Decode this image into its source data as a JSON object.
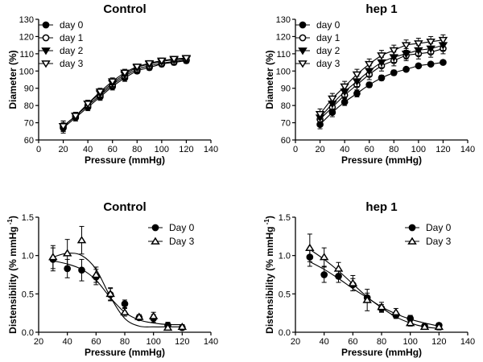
{
  "chart_data": [
    {
      "type": "line",
      "title": "Control",
      "xlabel": "Pressure (mmHg)",
      "ylabel": "Diameter (%)",
      "xlim": [
        0,
        140
      ],
      "ylim": [
        60,
        130
      ],
      "xticks": [
        0,
        20,
        40,
        60,
        80,
        100,
        120,
        140
      ],
      "yticks": [
        60,
        70,
        80,
        90,
        100,
        110,
        120,
        130
      ],
      "x": [
        20,
        30,
        40,
        50,
        60,
        70,
        80,
        90,
        100,
        110,
        120
      ],
      "legend_position": "top-left",
      "series": [
        {
          "name": "day 0",
          "marker": "circle-filled",
          "values": [
            67,
            73,
            79,
            85,
            91,
            96,
            100,
            102,
            104,
            105,
            106
          ],
          "errors": [
            3,
            2,
            2,
            2,
            2,
            2,
            1.5,
            1.5,
            1.5,
            1.5,
            1.5
          ]
        },
        {
          "name": "day 1",
          "marker": "circle-open",
          "values": [
            68,
            74,
            80,
            86,
            92,
            97,
            101,
            103,
            104.5,
            105.5,
            106.5
          ],
          "errors": [
            3,
            2,
            2,
            2,
            2,
            2,
            1.5,
            1.5,
            1.5,
            1.5,
            1.5
          ]
        },
        {
          "name": "day 2",
          "marker": "triangle-down-filled",
          "values": [
            68,
            74,
            81,
            87,
            93,
            98,
            102,
            104,
            105.5,
            106.5,
            107
          ],
          "errors": [
            3,
            2,
            2,
            2,
            2,
            2,
            1.5,
            1.5,
            1.5,
            1.5,
            1.5
          ]
        },
        {
          "name": "day 3",
          "marker": "triangle-down-open",
          "values": [
            68,
            74,
            81,
            88,
            94,
            99,
            102.5,
            104.5,
            106,
            107,
            107.5
          ],
          "errors": [
            3,
            2,
            2,
            2,
            2,
            2,
            1.5,
            1.5,
            1.5,
            1.5,
            1.5
          ]
        }
      ]
    },
    {
      "type": "line",
      "title": "hep 1",
      "xlabel": "Pressure (mmHg)",
      "ylabel": "Diameter (%)",
      "xlim": [
        0,
        140
      ],
      "ylim": [
        60,
        130
      ],
      "xticks": [
        0,
        20,
        40,
        60,
        80,
        100,
        120,
        140
      ],
      "yticks": [
        60,
        70,
        80,
        90,
        100,
        110,
        120,
        130
      ],
      "x": [
        20,
        30,
        40,
        50,
        60,
        70,
        80,
        90,
        100,
        110,
        120
      ],
      "legend_position": "top-left",
      "series": [
        {
          "name": "day 0",
          "marker": "circle-filled",
          "values": [
            69,
            76,
            82,
            87,
            92,
            96,
            99,
            101,
            103,
            104,
            105
          ],
          "errors": [
            2.5,
            2.5,
            2,
            2,
            1.5,
            1.5,
            1.5,
            1,
            1,
            1,
            1
          ]
        },
        {
          "name": "day 1",
          "marker": "circle-open",
          "values": [
            72,
            79,
            86,
            92,
            98,
            103,
            106,
            109,
            110,
            111,
            113
          ],
          "errors": [
            3,
            3,
            3,
            3,
            3,
            3,
            3,
            3,
            3,
            3,
            3
          ]
        },
        {
          "name": "day 2",
          "marker": "triangle-down-filled",
          "values": [
            73,
            81,
            88,
            94,
            100,
            105,
            108,
            110,
            112,
            113,
            115
          ],
          "errors": [
            3,
            3,
            3,
            3,
            3,
            3,
            3,
            3,
            3,
            3,
            3
          ]
        },
        {
          "name": "day 3",
          "marker": "triangle-down-open",
          "values": [
            75,
            84,
            91,
            98,
            104,
            109,
            112,
            115,
            116,
            117,
            118
          ],
          "errors": [
            3,
            3,
            3,
            3,
            3,
            3,
            3,
            3,
            3,
            3,
            3
          ]
        }
      ]
    },
    {
      "type": "scatter",
      "title": "Control",
      "xlabel": "Pressure (mmHg)",
      "ylabel": "Distensibility (% mmHg",
      "ylabel_superscript": "-1",
      "ylabel_close": ")",
      "xlim": [
        20,
        140
      ],
      "ylim": [
        0,
        1.5
      ],
      "xticks": [
        20,
        40,
        60,
        80,
        100,
        120,
        140
      ],
      "yticks": [
        0.0,
        0.5,
        1.0,
        1.5
      ],
      "x": [
        30,
        40,
        50,
        60,
        70,
        80,
        90,
        100,
        110,
        120
      ],
      "legend_position": "top-right",
      "series": [
        {
          "name": "Day 0",
          "marker": "circle-filled",
          "values": [
            0.95,
            0.83,
            0.81,
            0.72,
            0.49,
            0.37,
            0.19,
            0.18,
            0.09,
            0.06
          ],
          "errors": [
            0.15,
            0.12,
            0.14,
            0.1,
            0.08,
            0.05,
            0.03,
            0.05,
            0.04,
            0.03
          ],
          "fit": [
            0.93,
            0.89,
            0.82,
            0.68,
            0.45,
            0.26,
            0.16,
            0.12,
            0.1,
            0.1
          ]
        },
        {
          "name": "Day 3",
          "marker": "triangle-up-open",
          "values": [
            0.98,
            1.03,
            1.2,
            0.75,
            0.5,
            0.26,
            0.2,
            0.21,
            0.06,
            0.07
          ],
          "errors": [
            0.15,
            0.18,
            0.18,
            0.1,
            0.08,
            0.05,
            0.03,
            0.05,
            0.03,
            0.03
          ],
          "fit": [
            0.98,
            1.03,
            1.0,
            0.82,
            0.46,
            0.18,
            0.08,
            0.07,
            0.07,
            0.07
          ]
        }
      ]
    },
    {
      "type": "scatter",
      "title": "hep 1",
      "xlabel": "Pressure (mmHg)",
      "ylabel": "Distensibility (% mmHg",
      "ylabel_superscript": "-1",
      "ylabel_close": ")",
      "xlim": [
        20,
        140
      ],
      "ylim": [
        0,
        1.5
      ],
      "xticks": [
        20,
        40,
        60,
        80,
        100,
        120,
        140
      ],
      "yticks": [
        0.0,
        0.5,
        1.0,
        1.5
      ],
      "x": [
        30,
        40,
        50,
        60,
        70,
        80,
        90,
        100,
        110,
        120
      ],
      "legend_position": "top-right",
      "series": [
        {
          "name": "Day 0",
          "marker": "circle-filled",
          "values": [
            0.98,
            0.75,
            0.73,
            0.62,
            0.45,
            0.31,
            0.22,
            0.18,
            0.08,
            0.09
          ],
          "errors": [
            0.12,
            0.1,
            0.08,
            0.08,
            0.06,
            0.05,
            0.04,
            0.04,
            0.03,
            0.03
          ],
          "fit": [
            0.92,
            0.82,
            0.7,
            0.57,
            0.45,
            0.33,
            0.24,
            0.17,
            0.12,
            0.08
          ]
        },
        {
          "name": "Day 3",
          "marker": "triangle-up-open",
          "values": [
            1.1,
            0.98,
            0.83,
            0.64,
            0.42,
            0.33,
            0.26,
            0.12,
            0.07,
            0.07
          ],
          "errors": [
            0.18,
            0.12,
            0.08,
            0.1,
            0.14,
            0.06,
            0.05,
            0.04,
            0.03,
            0.04
          ],
          "fit": [
            1.08,
            0.95,
            0.8,
            0.63,
            0.46,
            0.32,
            0.2,
            0.12,
            0.07,
            0.05
          ]
        }
      ]
    }
  ]
}
